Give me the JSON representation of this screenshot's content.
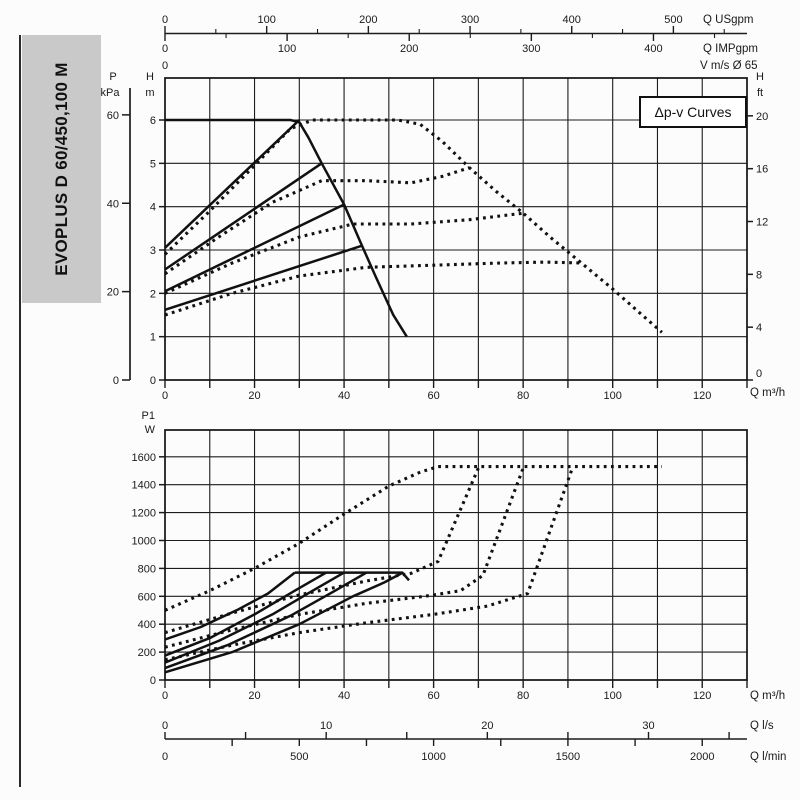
{
  "sidebar": {
    "model": "EVOPLUS D 60/450,100 M"
  },
  "labels": {
    "dpv_box": "Δp-v Curves",
    "pressure": "P",
    "pressure_unit": "kPa",
    "head": "H",
    "head_unit": "m",
    "head_right": "H",
    "head_right_unit": "ft",
    "power": "P1",
    "power_unit": "W",
    "q_m3h": "Q m³/h",
    "q_usgpm": "Q USgpm",
    "q_impgpm": "Q IMPgpm",
    "velocity": "V m/s Ø 65",
    "velocity_zero": "0",
    "q_ls": "Q l/s",
    "q_lmin": "Q l/min"
  },
  "chart_data": [
    {
      "type": "line",
      "title": "Δp-v Curves",
      "xlabel": "Q m³/h",
      "ylabel": "H m",
      "xlim": [
        0,
        130
      ],
      "x_grid_step": 10,
      "x_label_step": 20,
      "x_tick_labels": [
        0,
        20,
        40,
        60,
        80,
        100,
        120
      ],
      "y_ticks_m": [
        0,
        1,
        2,
        3,
        4,
        5,
        6
      ],
      "y_ticks_kpa": [
        0,
        20,
        40,
        60
      ],
      "y_ticks_ft": [
        0,
        4,
        8,
        12,
        16,
        20
      ],
      "x_ticks_usgpm": [
        0,
        100,
        200,
        300,
        400,
        500
      ],
      "x_ticks_impgpm": [
        0,
        100,
        200,
        300,
        400
      ],
      "grid": true,
      "series": [
        {
          "name": "max-speed-curve",
          "style": "solid",
          "points": [
            [
              0,
              6
            ],
            [
              28,
              6
            ],
            [
              30,
              5.95
            ],
            [
              32,
              5.6
            ],
            [
              35,
              5.0
            ],
            [
              40,
              4.05
            ],
            [
              44,
              3.1
            ],
            [
              47,
              2.4
            ],
            [
              51,
              1.5
            ],
            [
              54,
              1.0
            ]
          ]
        },
        {
          "name": "dpv-setline-1",
          "style": "solid",
          "points": [
            [
              0,
              3.05
            ],
            [
              30,
              6.0
            ]
          ]
        },
        {
          "name": "dpv-setline-2",
          "style": "solid",
          "points": [
            [
              0,
              2.55
            ],
            [
              35,
              5.0
            ]
          ]
        },
        {
          "name": "dpv-setline-3",
          "style": "solid",
          "points": [
            [
              0,
              2.05
            ],
            [
              40,
              4.05
            ]
          ]
        },
        {
          "name": "dpv-setline-4",
          "style": "solid",
          "points": [
            [
              0,
              1.62
            ],
            [
              44,
              3.1
            ]
          ]
        },
        {
          "name": "dpv-curve-1",
          "style": "dotted",
          "points": [
            [
              0,
              2.9
            ],
            [
              10,
              3.9
            ],
            [
              20,
              4.95
            ],
            [
              28,
              5.8
            ],
            [
              33,
              6.0
            ],
            [
              45,
              6.0
            ],
            [
              52,
              6.0
            ],
            [
              57,
              5.9
            ],
            [
              62,
              5.5
            ],
            [
              68,
              4.9
            ],
            [
              74,
              4.35
            ],
            [
              80,
              3.85
            ],
            [
              86,
              3.3
            ],
            [
              93,
              2.7
            ],
            [
              100,
              2.1
            ],
            [
              106,
              1.55
            ],
            [
              111,
              1.1
            ]
          ]
        },
        {
          "name": "dpv-curve-2",
          "style": "dotted",
          "points": [
            [
              0,
              2.45
            ],
            [
              12,
              3.3
            ],
            [
              24,
              4.1
            ],
            [
              35,
              4.6
            ],
            [
              45,
              4.6
            ],
            [
              55,
              4.55
            ],
            [
              62,
              4.7
            ],
            [
              68,
              4.9
            ]
          ]
        },
        {
          "name": "dpv-curve-3",
          "style": "dotted",
          "points": [
            [
              0,
              2.0
            ],
            [
              15,
              2.7
            ],
            [
              30,
              3.3
            ],
            [
              42,
              3.6
            ],
            [
              55,
              3.6
            ],
            [
              68,
              3.7
            ],
            [
              80,
              3.85
            ]
          ]
        },
        {
          "name": "dpv-curve-4",
          "style": "dotted",
          "points": [
            [
              0,
              1.5
            ],
            [
              15,
              2.0
            ],
            [
              30,
              2.4
            ],
            [
              45,
              2.6
            ],
            [
              60,
              2.65
            ],
            [
              75,
              2.7
            ],
            [
              85,
              2.72
            ],
            [
              93,
              2.7
            ]
          ]
        }
      ]
    },
    {
      "type": "line",
      "title": "",
      "xlabel": "Q m³/h",
      "ylabel": "P1 W",
      "xlim": [
        0,
        130
      ],
      "x_grid_step": 10,
      "x_label_step": 20,
      "x_tick_labels": [
        0,
        20,
        40,
        60,
        80,
        100,
        120
      ],
      "y_ticks_w": [
        0,
        200,
        400,
        600,
        800,
        1000,
        1200,
        1400,
        1600
      ],
      "x_ticks_ls": [
        0,
        10,
        20,
        30
      ],
      "x_ticks_lmin": [
        0,
        500,
        1000,
        1500,
        2000
      ],
      "grid": true,
      "series": [
        {
          "name": "power-limit-plateau",
          "style": "solid",
          "points": [
            [
              29,
              770
            ],
            [
              53,
              770
            ],
            [
              54.5,
              715
            ]
          ]
        },
        {
          "name": "power-solid-1",
          "style": "solid",
          "points": [
            [
              0,
              290
            ],
            [
              8,
              380
            ],
            [
              16,
              500
            ],
            [
              23,
              620
            ],
            [
              29,
              770
            ]
          ]
        },
        {
          "name": "power-solid-2",
          "style": "solid",
          "points": [
            [
              0,
              175
            ],
            [
              10,
              300
            ],
            [
              20,
              470
            ],
            [
              29,
              640
            ],
            [
              36,
              770
            ]
          ]
        },
        {
          "name": "power-solid-3",
          "style": "solid",
          "points": [
            [
              0,
              125
            ],
            [
              12,
              280
            ],
            [
              24,
              470
            ],
            [
              33,
              640
            ],
            [
              40,
              770
            ]
          ]
        },
        {
          "name": "power-solid-4",
          "style": "solid",
          "points": [
            [
              0,
              85
            ],
            [
              14,
              250
            ],
            [
              28,
              460
            ],
            [
              38,
              640
            ],
            [
              45,
              770
            ]
          ]
        },
        {
          "name": "power-solid-5",
          "style": "solid",
          "points": [
            [
              0,
              55
            ],
            [
              15,
              200
            ],
            [
              30,
              400
            ],
            [
              42,
              600
            ],
            [
              49,
              700
            ],
            [
              53,
              768
            ]
          ]
        },
        {
          "name": "power-dotted-1",
          "style": "dotted",
          "points": [
            [
              0,
              500
            ],
            [
              10,
              640
            ],
            [
              20,
              800
            ],
            [
              30,
              980
            ],
            [
              40,
              1190
            ],
            [
              50,
              1390
            ],
            [
              57,
              1490
            ],
            [
              61,
              1530
            ],
            [
              111,
              1530
            ]
          ]
        },
        {
          "name": "power-dotted-2",
          "style": "dotted",
          "points": [
            [
              0,
              340
            ],
            [
              15,
              480
            ],
            [
              30,
              610
            ],
            [
              45,
              710
            ],
            [
              55,
              765
            ],
            [
              61,
              850
            ],
            [
              70,
              1520
            ]
          ]
        },
        {
          "name": "power-dotted-3",
          "style": "dotted",
          "points": [
            [
              0,
              235
            ],
            [
              15,
              360
            ],
            [
              30,
              470
            ],
            [
              45,
              550
            ],
            [
              58,
              600
            ],
            [
              66,
              640
            ],
            [
              71,
              750
            ],
            [
              80,
              1520
            ]
          ]
        },
        {
          "name": "power-dotted-4",
          "style": "dotted",
          "points": [
            [
              0,
              145
            ],
            [
              15,
              250
            ],
            [
              30,
              340
            ],
            [
              45,
              410
            ],
            [
              60,
              470
            ],
            [
              72,
              530
            ],
            [
              81,
              620
            ],
            [
              91,
              1520
            ]
          ]
        }
      ]
    }
  ]
}
